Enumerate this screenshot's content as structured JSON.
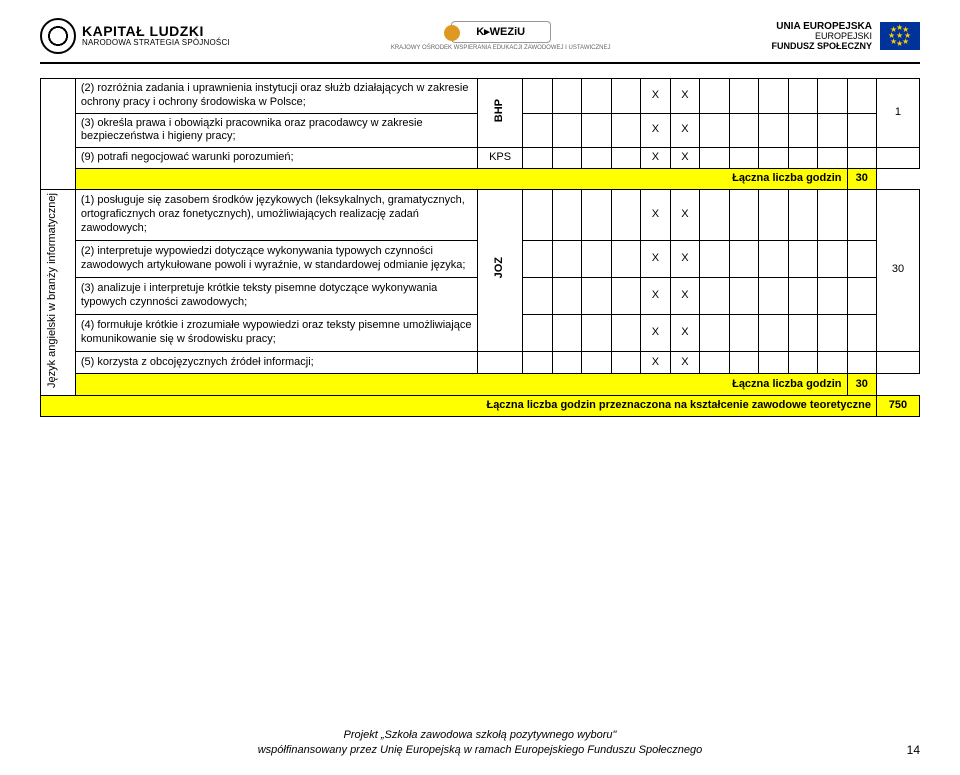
{
  "header": {
    "kl_big": "KAPITAŁ LUDZKI",
    "kl_small": "NARODOWA STRATEGIA SPÓJNOŚCI",
    "center_badge": "K▸WEZiU",
    "center_sub": "KRAJOWY OŚRODEK WSPIERANIA EDUKACJI ZAWODOWEJ I USTAWICZNEJ",
    "eu_l1": "UNIA EUROPEJSKA",
    "eu_l2": "EUROPEJSKI",
    "eu_l3": "FUNDUSZ SPOŁECZNY"
  },
  "vert_label": "Język angielski w branży informatycznej",
  "bhp_code": "BHP",
  "kps_code": "KPS",
  "joz_code": "JOZ",
  "rows": {
    "r1": "(2) rozróżnia zadania i uprawnienia instytucji oraz służb działających w zakresie ochrony pracy i ochrony środowiska w Polsce;",
    "r2": "(3) określa prawa i obowiązki pracownika oraz pracodawcy w zakresie bezpieczeństwa i higieny pracy;",
    "r3": "(9) potrafi negocjować warunki porozumień;",
    "r4_label": "Łączna liczba godzin",
    "r4_val": "30",
    "r5": "(1) posługuje się zasobem środków językowych (leksykalnych, gramatycznych, ortograficznych oraz fonetycznych), umożliwiających realizację zadań zawodowych;",
    "r6": "(2) interpretuje wypowiedzi dotyczące wykonywania typowych czynności zawodowych artykułowane powoli i wyraźnie, w standardowej odmianie języka;",
    "r7": "(3) analizuje i interpretuje krótkie teksty pisemne dotyczące wykonywania typowych czynności zawodowych;",
    "r8": "(4) formułuje krótkie i zrozumiałe wypowiedzi oraz teksty pisemne umożliwiające komunikowanie się w środowisku pracy;",
    "r9": "(5) korzysta z obcojęzycznych źródeł informacji;",
    "r10_label": "Łączna liczba godzin",
    "r10_val": "30",
    "r11_label": "Łączna liczba godzin przeznaczona na kształcenie zawodowe teoretyczne",
    "r11_val": "750"
  },
  "num_1": "1",
  "num_30": "30",
  "x": "X",
  "footer": {
    "l1": "Projekt „Szkoła zawodowa szkołą pozytywnego wyboru\"",
    "l2": "współfinansowany przez Unię Europejską w ramach Europejskiego Funduszu Społecznego"
  },
  "page_number": "14"
}
